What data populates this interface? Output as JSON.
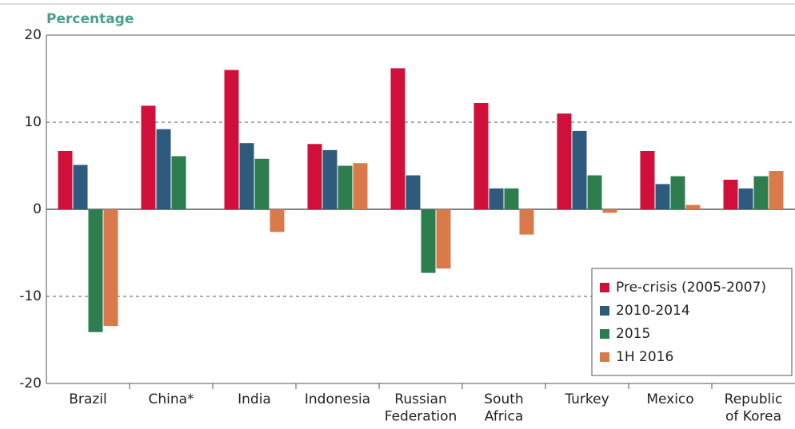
{
  "chart_data": {
    "type": "bar",
    "y_label": "Percentage",
    "categories": [
      "Brazil",
      "China*",
      "India",
      "Indonesia",
      "Russian\nFederation",
      "South\nAfrica",
      "Turkey",
      "Mexico",
      "Republic\nof Korea"
    ],
    "series": [
      {
        "name": "Pre-crisis (2005-2007)",
        "color": "#d0103a",
        "values": [
          6.7,
          11.9,
          16.0,
          7.5,
          16.2,
          12.2,
          11.0,
          6.7,
          3.4
        ]
      },
      {
        "name": "2010-2014",
        "color": "#2e5a7e",
        "values": [
          5.1,
          9.2,
          7.6,
          6.8,
          3.9,
          2.4,
          9.0,
          2.9,
          2.4
        ]
      },
      {
        "name": "2015",
        "color": "#2e7d4f",
        "values": [
          -14.1,
          6.1,
          5.8,
          5.0,
          -7.3,
          2.4,
          3.9,
          3.8,
          3.8
        ]
      },
      {
        "name": "1H 2016",
        "color": "#d97a4a",
        "values": [
          -13.4,
          null,
          -2.6,
          5.3,
          -6.8,
          -2.9,
          -0.4,
          0.5,
          4.4
        ]
      }
    ],
    "ylim": [
      -20,
      20
    ],
    "yticks": [
      -20,
      -10,
      0,
      10,
      20
    ],
    "grid": true,
    "legend": "lower right"
  }
}
